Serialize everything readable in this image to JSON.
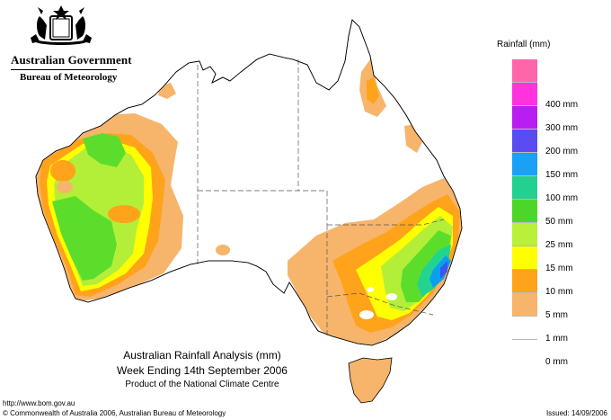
{
  "header": {
    "government": "Australian Government",
    "bureau": "Bureau of Meteorology",
    "crest_icon": "commonwealth-coat-of-arms-icon"
  },
  "map": {
    "title": "Australian Rainfall Analysis (mm)",
    "week": "Week Ending 14th September 2006",
    "product": "Product of the National Climate Centre",
    "colors": {
      "land": "#ffffff",
      "coast": "#000000",
      "border": "#555555",
      "r1": "#f7b46b",
      "r5": "#ffa31a",
      "r10": "#ffff00",
      "r15": "#b3ef38",
      "r25": "#5ddd2b",
      "r50": "#22d490",
      "r100": "#0aa0f0",
      "r150": "#3b55f0"
    }
  },
  "legend": {
    "title": "Rainfall (mm)",
    "items": [
      {
        "label": "",
        "color": "#ff66aa"
      },
      {
        "label": "400 mm",
        "color": "#ff33dd"
      },
      {
        "label": "300 mm",
        "color": "#b81ef2"
      },
      {
        "label": "200 mm",
        "color": "#5a4cf0"
      },
      {
        "label": "150 mm",
        "color": "#1aa0f5"
      },
      {
        "label": "100 mm",
        "color": "#22d090"
      },
      {
        "label": "50 mm",
        "color": "#4cd62a"
      },
      {
        "label": "25 mm",
        "color": "#b8f03a"
      },
      {
        "label": "15 mm",
        "color": "#ffff00"
      },
      {
        "label": "10 mm",
        "color": "#ffa31a"
      },
      {
        "label": "5 mm",
        "color": "#f7b46b"
      },
      {
        "label": "1 mm",
        "color": "#ffffff"
      },
      {
        "label": "0 mm",
        "color": ""
      }
    ]
  },
  "footer": {
    "url": "http://www.bom.gov.au",
    "copyright": "© Commonwealth of Australia 2006, Australian Bureau of Meteorology",
    "issued": "Issued: 14/09/2006"
  }
}
